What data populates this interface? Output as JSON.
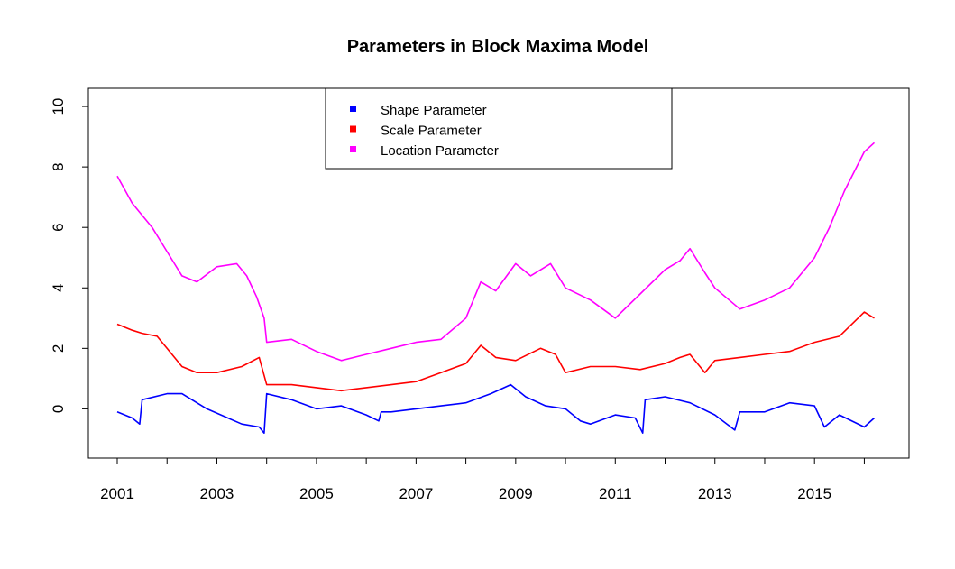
{
  "chart_data": {
    "type": "line",
    "title": "Parameters in Block Maxima Model",
    "xlabel": "",
    "ylabel": "",
    "xlim": [
      2001,
      2016.3
    ],
    "ylim": [
      -1.3,
      10.3
    ],
    "x_ticks": [
      2001,
      2002,
      2003,
      2004,
      2005,
      2006,
      2007,
      2008,
      2009,
      2010,
      2011,
      2012,
      2013,
      2014,
      2015,
      2016
    ],
    "x_tick_labels": [
      "2001",
      "",
      "2003",
      "",
      "2005",
      "",
      "2007",
      "",
      "2009",
      "",
      "2011",
      "",
      "2013",
      "",
      "2015",
      ""
    ],
    "y_ticks": [
      0,
      2,
      4,
      6,
      8,
      10
    ],
    "y_tick_labels": [
      "0",
      "2",
      "4",
      "6",
      "8",
      "10"
    ],
    "grid": false,
    "legend_position": "top-center",
    "series": [
      {
        "name": "Shape Parameter",
        "color": "#0000ff",
        "x": [
          2001.0,
          2001.3,
          2001.45,
          2001.5,
          2002.0,
          2002.3,
          2002.8,
          2003.5,
          2003.85,
          2003.95,
          2004.0,
          2004.5,
          2005.0,
          2005.5,
          2006.0,
          2006.25,
          2006.3,
          2006.5,
          2007.0,
          2007.5,
          2008.0,
          2008.5,
          2008.9,
          2009.2,
          2009.6,
          2010.0,
          2010.3,
          2010.5,
          2011.0,
          2011.4,
          2011.55,
          2011.6,
          2012.0,
          2012.5,
          2013.0,
          2013.4,
          2013.5,
          2014.0,
          2014.5,
          2015.0,
          2015.2,
          2015.5,
          2016.0,
          2016.2
        ],
        "y": [
          -0.1,
          -0.3,
          -0.5,
          0.3,
          0.5,
          0.5,
          0.0,
          -0.5,
          -0.6,
          -0.8,
          0.5,
          0.3,
          0.0,
          0.1,
          -0.2,
          -0.4,
          -0.1,
          -0.1,
          0.0,
          0.1,
          0.2,
          0.5,
          0.8,
          0.4,
          0.1,
          0.0,
          -0.4,
          -0.5,
          -0.2,
          -0.3,
          -0.8,
          0.3,
          0.4,
          0.2,
          -0.2,
          -0.7,
          -0.1,
          -0.1,
          0.2,
          0.1,
          -0.6,
          -0.2,
          -0.6,
          -0.3
        ]
      },
      {
        "name": "Scale Parameter",
        "color": "#ff0000",
        "x": [
          2001.0,
          2001.3,
          2001.5,
          2001.8,
          2002.0,
          2002.3,
          2002.6,
          2003.0,
          2003.5,
          2003.85,
          2004.0,
          2004.5,
          2005.0,
          2005.5,
          2006.0,
          2006.5,
          2007.0,
          2007.5,
          2008.0,
          2008.3,
          2008.6,
          2009.0,
          2009.5,
          2009.8,
          2010.0,
          2010.5,
          2011.0,
          2011.5,
          2012.0,
          2012.3,
          2012.5,
          2012.8,
          2013.0,
          2013.5,
          2014.0,
          2014.5,
          2015.0,
          2015.5,
          2016.0,
          2016.2
        ],
        "y": [
          2.8,
          2.6,
          2.5,
          2.4,
          2.0,
          1.4,
          1.2,
          1.2,
          1.4,
          1.7,
          0.8,
          0.8,
          0.7,
          0.6,
          0.7,
          0.8,
          0.9,
          1.2,
          1.5,
          2.1,
          1.7,
          1.6,
          2.0,
          1.8,
          1.2,
          1.4,
          1.4,
          1.3,
          1.5,
          1.7,
          1.8,
          1.2,
          1.6,
          1.7,
          1.8,
          1.9,
          2.2,
          2.4,
          3.2,
          3.0
        ]
      },
      {
        "name": "Location Parameter",
        "color": "#ff00ff",
        "x": [
          2001.0,
          2001.3,
          2001.7,
          2002.0,
          2002.3,
          2002.6,
          2003.0,
          2003.4,
          2003.6,
          2003.8,
          2003.95,
          2004.0,
          2004.5,
          2005.0,
          2005.5,
          2006.0,
          2006.5,
          2007.0,
          2007.5,
          2008.0,
          2008.3,
          2008.6,
          2009.0,
          2009.3,
          2009.7,
          2010.0,
          2010.5,
          2011.0,
          2011.5,
          2012.0,
          2012.3,
          2012.5,
          2012.8,
          2013.0,
          2013.5,
          2014.0,
          2014.5,
          2015.0,
          2015.3,
          2015.6,
          2016.0,
          2016.2
        ],
        "y": [
          7.7,
          6.8,
          6.0,
          5.2,
          4.4,
          4.2,
          4.7,
          4.8,
          4.4,
          3.7,
          3.0,
          2.2,
          2.3,
          1.9,
          1.6,
          1.8,
          2.0,
          2.2,
          2.3,
          3.0,
          4.2,
          3.9,
          4.8,
          4.4,
          4.8,
          4.0,
          3.6,
          3.0,
          3.8,
          4.6,
          4.9,
          5.3,
          4.5,
          4.0,
          3.3,
          3.6,
          4.0,
          5.0,
          6.0,
          7.2,
          8.5,
          8.8
        ]
      }
    ]
  }
}
